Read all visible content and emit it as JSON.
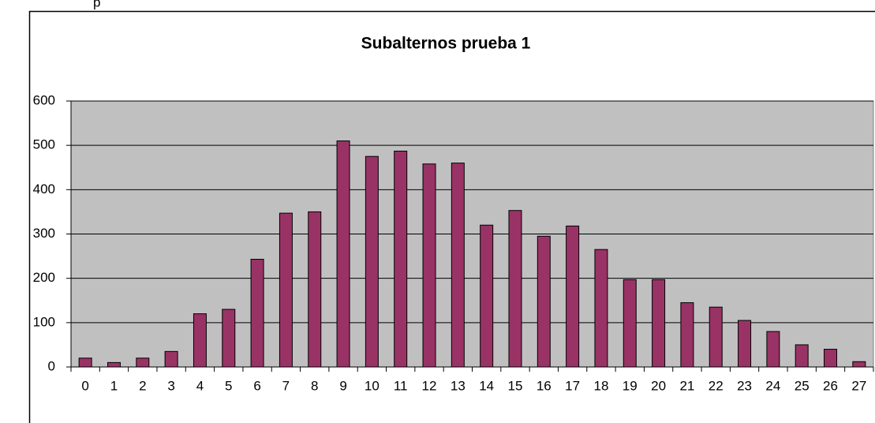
{
  "header_text": "p",
  "chart_data": {
    "type": "bar",
    "title": "Subalternos prueba 1",
    "categories": [
      "0",
      "1",
      "2",
      "3",
      "4",
      "5",
      "6",
      "7",
      "8",
      "9",
      "10",
      "11",
      "12",
      "13",
      "14",
      "15",
      "16",
      "17",
      "18",
      "19",
      "20",
      "21",
      "22",
      "23",
      "24",
      "25",
      "26",
      "27"
    ],
    "values": [
      20,
      10,
      20,
      35,
      120,
      130,
      243,
      347,
      350,
      510,
      475,
      487,
      458,
      460,
      320,
      353,
      295,
      318,
      265,
      197,
      197,
      145,
      135,
      105,
      80,
      50,
      40,
      12
    ],
    "color": "#993366",
    "ylim": [
      0,
      600
    ],
    "yticks": [
      0,
      100,
      200,
      300,
      400,
      500,
      600
    ],
    "grid": true
  }
}
